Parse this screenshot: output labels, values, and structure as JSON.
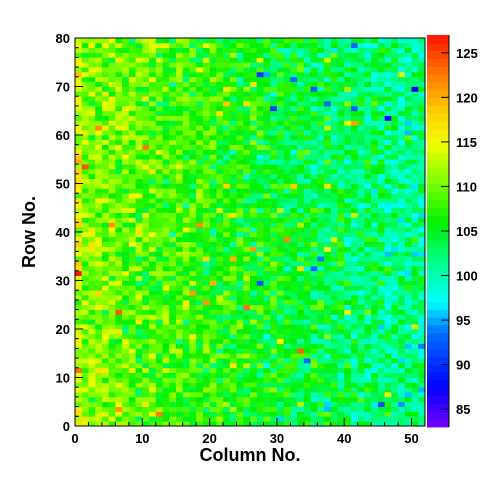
{
  "chart_data": {
    "type": "heatmap",
    "title": "",
    "xlabel": "Column No.",
    "ylabel": "Row No.",
    "xlim": [
      0,
      52
    ],
    "ylim": [
      0,
      80
    ],
    "x_ticks": [
      0,
      10,
      20,
      30,
      40,
      50
    ],
    "y_ticks": [
      0,
      10,
      20,
      30,
      40,
      50,
      60,
      70,
      80
    ],
    "columns": 52,
    "rows": 80,
    "grid": false,
    "z_range": [
      83,
      127
    ],
    "colorbar_ticks": [
      85,
      90,
      95,
      100,
      105,
      110,
      115,
      120,
      125
    ],
    "colorbar_position": "right",
    "trend": {
      "description_values": "approximate mean level by column, seeded noise added",
      "left_edge_value": 111,
      "right_edge_value": 101,
      "noise_amplitude": 5
    }
  }
}
